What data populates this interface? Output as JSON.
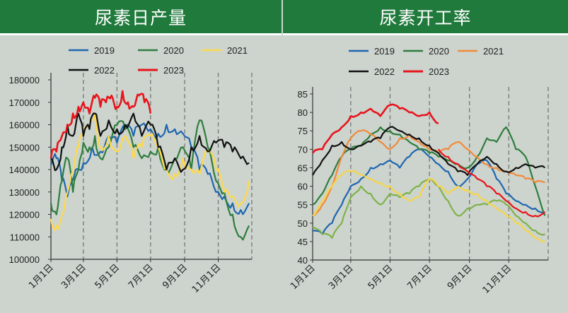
{
  "colors": {
    "title_bg": "#1f7a3c",
    "background": "#ccd4cd",
    "2019": "#1f66b0",
    "2020": "#2f7d3e",
    "2021_left": "#ffd94a",
    "2021_right": "#f28a3a",
    "2022": "#111111",
    "2023": "#e8141c",
    "light_green": "#7fb24a",
    "yellow": "#f5d54a",
    "red_thin": "#e8141c"
  },
  "chart_data": [
    {
      "type": "line",
      "title": "尿素日产量",
      "ylim": [
        100000,
        180000
      ],
      "yticks": [
        "100000",
        "110000",
        "120000",
        "130000",
        "140000",
        "150000",
        "160000",
        "170000",
        "180000"
      ],
      "xticks": [
        "1月1日",
        "3月1日",
        "5月1日",
        "7月1日",
        "9月1日",
        "11月1日"
      ],
      "xtick_days": [
        0,
        59,
        120,
        181,
        243,
        304
      ],
      "x_max_day": 365,
      "legend": [
        "2019",
        "2020",
        "2021",
        "2022",
        "2023"
      ],
      "series": [
        {
          "name": "2019",
          "key": "2019",
          "x": [
            0,
            10,
            20,
            30,
            45,
            59,
            75,
            90,
            105,
            120,
            135,
            150,
            165,
            181,
            195,
            210,
            225,
            240,
            255,
            270,
            285,
            300,
            315,
            330,
            345,
            360
          ],
          "values": [
            142000,
            145000,
            135000,
            128000,
            140000,
            143000,
            150000,
            148000,
            155000,
            152000,
            158000,
            155000,
            160000,
            158000,
            156000,
            160000,
            158000,
            156000,
            150000,
            140000,
            138000,
            130000,
            128000,
            125000,
            122000,
            125000
          ]
        },
        {
          "name": "2020",
          "key": "2020",
          "x": [
            0,
            10,
            20,
            30,
            40,
            50,
            59,
            70,
            80,
            90,
            105,
            120,
            135,
            150,
            165,
            181,
            195,
            210,
            225,
            240,
            255,
            270,
            285,
            300,
            315,
            330,
            345,
            360
          ],
          "values": [
            125000,
            120000,
            135000,
            145000,
            130000,
            140000,
            152000,
            150000,
            155000,
            145000,
            150000,
            160000,
            158000,
            150000,
            145000,
            148000,
            150000,
            140000,
            145000,
            150000,
            140000,
            162000,
            150000,
            135000,
            130000,
            120000,
            110000,
            115000
          ]
        },
        {
          "name": "2021",
          "key": "2021_left",
          "x": [
            0,
            10,
            20,
            30,
            40,
            50,
            59,
            70,
            80,
            90,
            105,
            120,
            135,
            150,
            165,
            181,
            195,
            210,
            225,
            240,
            255,
            270,
            285,
            300,
            315,
            330,
            345,
            360
          ],
          "values": [
            118000,
            115000,
            120000,
            130000,
            138000,
            150000,
            155000,
            160000,
            165000,
            150000,
            155000,
            148000,
            155000,
            145000,
            150000,
            155000,
            150000,
            140000,
            138000,
            145000,
            140000,
            138000,
            148000,
            140000,
            130000,
            128000,
            125000,
            135000
          ]
        },
        {
          "name": "2022",
          "key": "2022",
          "x": [
            0,
            10,
            20,
            30,
            40,
            50,
            59,
            70,
            80,
            90,
            105,
            120,
            135,
            150,
            165,
            181,
            195,
            210,
            225,
            240,
            255,
            270,
            285,
            300,
            315,
            330,
            345,
            360
          ],
          "values": [
            145000,
            140000,
            150000,
            160000,
            155000,
            165000,
            155000,
            158000,
            165000,
            155000,
            162000,
            158000,
            160000,
            165000,
            155000,
            160000,
            150000,
            140000,
            145000,
            140000,
            150000,
            155000,
            148000,
            152000,
            150000,
            148000,
            145000,
            143000
          ]
        },
        {
          "name": "2023",
          "key": "2023",
          "x": [
            0,
            10,
            20,
            30,
            40,
            50,
            59,
            70,
            80,
            90,
            100,
            110,
            120,
            130,
            140,
            150,
            160,
            170,
            181
          ],
          "values": [
            145000,
            148000,
            155000,
            160000,
            165000,
            168000,
            170000,
            165000,
            172000,
            168000,
            170000,
            173000,
            168000,
            175000,
            170000,
            168000,
            173000,
            170000,
            165000
          ]
        }
      ]
    },
    {
      "type": "line",
      "title": "尿素开工率",
      "ylim": [
        40,
        85
      ],
      "yticks": [
        "40",
        "45",
        "50",
        "55",
        "60",
        "65",
        "70",
        "75",
        "80",
        "85"
      ],
      "xticks": [
        "1月1日",
        "3月1日",
        "5月1日",
        "7月1日",
        "9月1日",
        "11月1日"
      ],
      "xtick_days": [
        0,
        59,
        120,
        181,
        243,
        304
      ],
      "x_max_day": 365,
      "legend": [
        "2019",
        "2020",
        "2021",
        "2022",
        "2023"
      ],
      "series": [
        {
          "name": "2019",
          "key": "2019",
          "x": [
            0,
            15,
            30,
            45,
            59,
            75,
            90,
            105,
            120,
            135,
            150,
            165,
            181,
            195,
            210,
            225,
            240,
            255,
            270,
            285,
            300,
            315,
            330,
            345,
            360
          ],
          "values": [
            48,
            47,
            50,
            55,
            60,
            62,
            65,
            66,
            67,
            65,
            68,
            70,
            68,
            66,
            64,
            60,
            62,
            66,
            67,
            62,
            58,
            56,
            55,
            54,
            53
          ]
        },
        {
          "name": "2020",
          "key": "2020",
          "x": [
            0,
            15,
            30,
            45,
            59,
            75,
            90,
            105,
            120,
            135,
            150,
            165,
            181,
            195,
            210,
            225,
            240,
            255,
            270,
            285,
            300,
            315,
            330,
            345,
            360
          ],
          "values": [
            55,
            58,
            63,
            68,
            70,
            71,
            74,
            76,
            75,
            74,
            72,
            70,
            69,
            68,
            67,
            66,
            65,
            68,
            73,
            72,
            76,
            70,
            68,
            60,
            52
          ]
        },
        {
          "name": "2021",
          "key": "2021_right",
          "x": [
            0,
            15,
            30,
            45,
            59,
            75,
            90,
            105,
            120,
            135,
            150,
            165,
            181,
            195,
            210,
            225,
            240,
            255,
            270,
            285,
            300,
            315,
            330,
            345,
            360
          ],
          "values": [
            52,
            55,
            60,
            68,
            73,
            75,
            74,
            72,
            70,
            73,
            74,
            72,
            70,
            69,
            70,
            72,
            70,
            68,
            66,
            65,
            64,
            63,
            62,
            61,
            61
          ]
        },
        {
          "name": "2022",
          "key": "2022",
          "x": [
            0,
            15,
            30,
            45,
            59,
            75,
            90,
            105,
            120,
            135,
            150,
            165,
            181,
            195,
            210,
            225,
            240,
            255,
            270,
            285,
            300,
            315,
            330,
            345,
            360
          ],
          "values": [
            63,
            67,
            71,
            72,
            70,
            71,
            72,
            73,
            76,
            75,
            74,
            73,
            71,
            69,
            66,
            64,
            63,
            66,
            68,
            66,
            64,
            65,
            66,
            65,
            65
          ]
        },
        {
          "name": "2023",
          "key": "2023",
          "x": [
            0,
            15,
            30,
            45,
            59,
            75,
            90,
            105,
            120,
            135,
            150,
            165,
            181,
            195
          ],
          "values": [
            69,
            70,
            74,
            76,
            79,
            80,
            81,
            79,
            82,
            81,
            80,
            79,
            80,
            77
          ]
        },
        {
          "key": "light_green",
          "x": [
            0,
            15,
            30,
            45,
            59,
            75,
            90,
            105,
            120,
            135,
            150,
            165,
            181,
            195,
            210,
            225,
            240,
            255,
            270,
            285,
            300,
            315,
            330,
            345,
            360
          ],
          "values": [
            49,
            47,
            46,
            50,
            57,
            60,
            58,
            55,
            58,
            57,
            58,
            60,
            62,
            60,
            56,
            52,
            54,
            55,
            55,
            56,
            55,
            52,
            50,
            48,
            47
          ]
        },
        {
          "key": "yellow",
          "x": [
            0,
            15,
            30,
            45,
            59,
            75,
            90,
            105,
            120,
            135,
            150,
            165,
            181,
            195,
            210,
            225,
            240,
            255,
            270,
            285,
            300,
            315,
            330,
            345,
            360
          ],
          "values": [
            52,
            56,
            60,
            63,
            64,
            63,
            62,
            61,
            60,
            58,
            56,
            57,
            62,
            60,
            58,
            60,
            59,
            58,
            56,
            54,
            52,
            50,
            48,
            46,
            45
          ]
        },
        {
          "key": "red_thin",
          "x": [
            195,
            210,
            225,
            240,
            255,
            270,
            285,
            300,
            315,
            330,
            345,
            360
          ],
          "values": [
            70,
            68,
            66,
            64,
            62,
            60,
            58,
            56,
            54,
            53,
            52,
            53
          ]
        }
      ]
    }
  ]
}
